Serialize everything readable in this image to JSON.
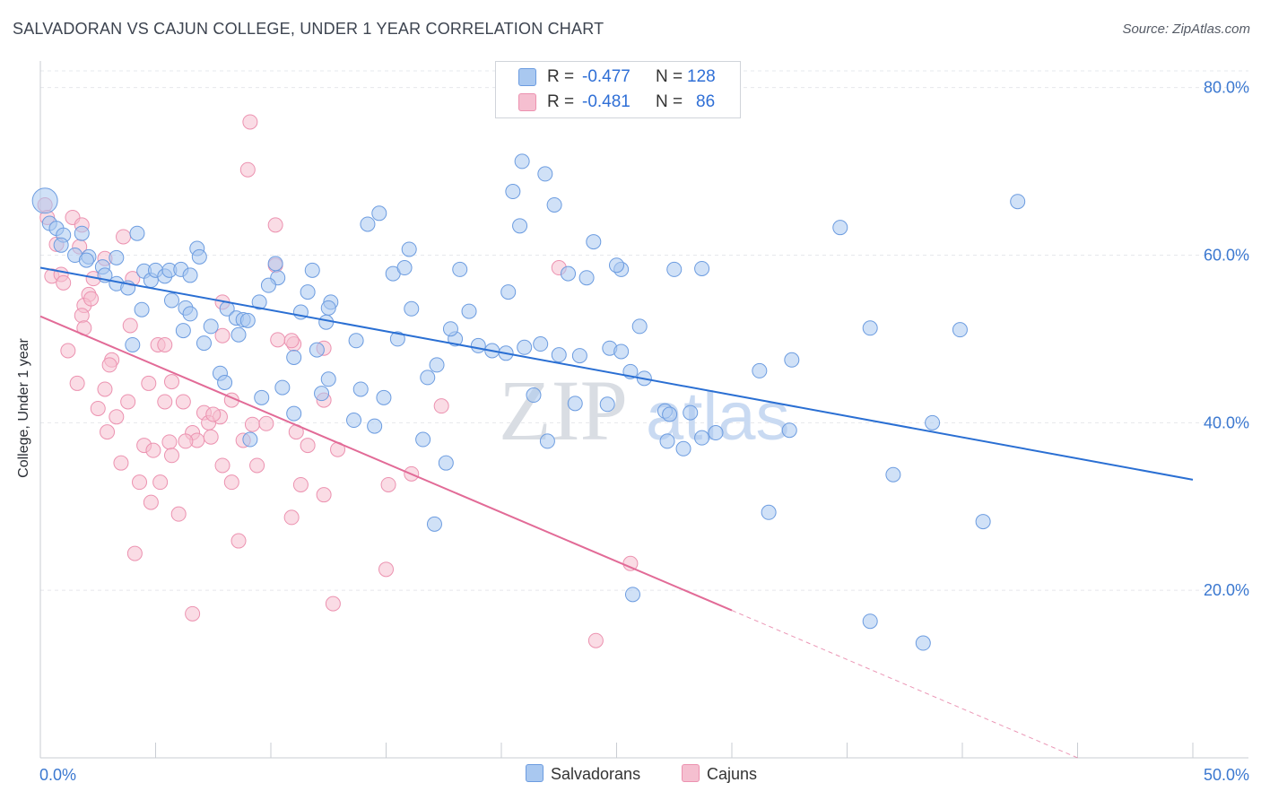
{
  "title": "SALVADORAN VS CAJUN COLLEGE, UNDER 1 YEAR CORRELATION CHART",
  "source": "Source: ZipAtlas.com",
  "watermark": {
    "zip": "ZIP",
    "atlas": "atlas"
  },
  "legend": {
    "rows": [
      {
        "r_label": "R =",
        "r_value": "-0.477",
        "n_label": "N =",
        "n_value": "128"
      },
      {
        "r_label": "R =",
        "r_value": "-0.481",
        "n_label": "N =",
        "n_value": "86"
      }
    ],
    "bottom": [
      "Salvadorans",
      "Cajuns"
    ]
  },
  "colors": {
    "salvadoran_fill": "#a9c8f0",
    "salvadoran_stroke": "#6c9ce0",
    "salvadoran_line": "#2a6fd3",
    "cajun_fill": "#f5bfd0",
    "cajun_stroke": "#ec92b0",
    "cajun_line": "#e26b97",
    "tick": "#3b78d0",
    "grid": "#e6e8ec"
  },
  "chart_data": {
    "type": "scatter",
    "title": "SALVADORAN VS CAJUN COLLEGE, UNDER 1 YEAR CORRELATION CHART",
    "xlabel": "",
    "ylabel": "College, Under 1 year",
    "xlim": [
      0,
      50
    ],
    "ylim": [
      0,
      82
    ],
    "x_tick_labels": [
      "0.0%",
      "50.0%"
    ],
    "y_ticks": [
      20,
      40,
      60,
      80
    ],
    "y_tick_labels": [
      "20.0%",
      "40.0%",
      "60.0%",
      "80.0%"
    ],
    "grid": true,
    "legend_position": "top-center",
    "series": [
      {
        "name": "Salvadorans",
        "r": -0.477,
        "n": 128,
        "trend": {
          "x": [
            0,
            50
          ],
          "y": [
            58.5,
            33.2
          ]
        },
        "points": [
          [
            0.2,
            66.5
          ],
          [
            0.4,
            63.8
          ],
          [
            0.7,
            63.2
          ],
          [
            1,
            62.4
          ],
          [
            1.8,
            62.6
          ],
          [
            4.2,
            62.6
          ],
          [
            1.5,
            60
          ],
          [
            0.9,
            61.2
          ],
          [
            2.1,
            59.8
          ],
          [
            2.7,
            58.6
          ],
          [
            3.3,
            59.7
          ],
          [
            2.8,
            57.6
          ],
          [
            3.3,
            56.6
          ],
          [
            3.8,
            56.1
          ],
          [
            4.5,
            58.1
          ],
          [
            4.8,
            57
          ],
          [
            5,
            58.2
          ],
          [
            5.4,
            57.5
          ],
          [
            5.6,
            58.2
          ],
          [
            6.1,
            58.3
          ],
          [
            6.8,
            60.8
          ],
          [
            6.9,
            59.8
          ],
          [
            4.4,
            53.5
          ],
          [
            5.7,
            54.6
          ],
          [
            6.3,
            53.7
          ],
          [
            6.5,
            53
          ],
          [
            8.1,
            53.6
          ],
          [
            8.5,
            52.5
          ],
          [
            8.8,
            52.3
          ],
          [
            9.5,
            54.4
          ],
          [
            10.2,
            59
          ],
          [
            10.3,
            57.3
          ],
          [
            9.9,
            56.4
          ],
          [
            11.8,
            58.2
          ],
          [
            12.6,
            54.4
          ],
          [
            11.6,
            55.6
          ],
          [
            11.3,
            53.2
          ],
          [
            12.4,
            52
          ],
          [
            13.7,
            49.8
          ],
          [
            12,
            48.7
          ],
          [
            11,
            47.8
          ],
          [
            7.1,
            49.5
          ],
          [
            7.4,
            51.5
          ],
          [
            6.2,
            51
          ],
          [
            8.6,
            50.5
          ],
          [
            4,
            49.3
          ],
          [
            7.8,
            45.9
          ],
          [
            8,
            44.8
          ],
          [
            9.6,
            43
          ],
          [
            9.1,
            38
          ],
          [
            11,
            41.1
          ],
          [
            10.5,
            44.2
          ],
          [
            12.5,
            45.2
          ],
          [
            12.2,
            43.5
          ],
          [
            13.9,
            44
          ],
          [
            14.9,
            43
          ],
          [
            13.6,
            40.3
          ],
          [
            14.5,
            39.6
          ],
          [
            14.2,
            63.7
          ],
          [
            14.7,
            65
          ],
          [
            15.3,
            57.8
          ],
          [
            15.8,
            58.5
          ],
          [
            15.5,
            50
          ],
          [
            16,
            60.7
          ],
          [
            16.1,
            53.6
          ],
          [
            16.8,
            45.4
          ],
          [
            17.2,
            46.9
          ],
          [
            16.6,
            38
          ],
          [
            17.1,
            27.9
          ],
          [
            17.6,
            35.2
          ],
          [
            18.2,
            58.3
          ],
          [
            18.6,
            53.3
          ],
          [
            19,
            49.2
          ],
          [
            18,
            50
          ],
          [
            17.8,
            51.2
          ],
          [
            19.6,
            48.6
          ],
          [
            20.2,
            48.3
          ],
          [
            20.3,
            55.6
          ],
          [
            21,
            49
          ],
          [
            20.8,
            63.5
          ],
          [
            20.5,
            67.6
          ],
          [
            20.9,
            71.2
          ],
          [
            21.9,
            69.7
          ],
          [
            21.4,
            43.3
          ],
          [
            21.7,
            49.4
          ],
          [
            22,
            37.8
          ],
          [
            22.3,
            66
          ],
          [
            22.5,
            48.1
          ],
          [
            23.2,
            42.3
          ],
          [
            22.9,
            57.8
          ],
          [
            23.7,
            57.3
          ],
          [
            24,
            61.6
          ],
          [
            23.4,
            48
          ],
          [
            24.7,
            48.9
          ],
          [
            25.2,
            58.3
          ],
          [
            25,
            58.8
          ],
          [
            25.2,
            48.5
          ],
          [
            25.6,
            46.1
          ],
          [
            26.2,
            45.3
          ],
          [
            26,
            51.5
          ],
          [
            27.1,
            41.4
          ],
          [
            27.3,
            41
          ],
          [
            28.2,
            41.2
          ],
          [
            27.9,
            36.9
          ],
          [
            27.2,
            37.8
          ],
          [
            28.7,
            38.2
          ],
          [
            28.7,
            58.4
          ],
          [
            29.3,
            38.8
          ],
          [
            31.2,
            46.2
          ],
          [
            32.5,
            39.1
          ],
          [
            31.6,
            29.3
          ],
          [
            32.6,
            47.5
          ],
          [
            34.7,
            63.3
          ],
          [
            25.7,
            19.5
          ],
          [
            36,
            16.3
          ],
          [
            37,
            33.8
          ],
          [
            38.7,
            40
          ],
          [
            38.3,
            13.7
          ],
          [
            39.9,
            51.1
          ],
          [
            40.9,
            28.2
          ],
          [
            42.4,
            66.4
          ],
          [
            36,
            51.3
          ],
          [
            27.5,
            58.3
          ],
          [
            24.6,
            42.2
          ],
          [
            12.5,
            53.7
          ],
          [
            9,
            52.2
          ],
          [
            6.5,
            57.6
          ],
          [
            2,
            59.4
          ]
        ]
      },
      {
        "name": "Cajuns",
        "r": -0.481,
        "n": 86,
        "trend": {
          "x": [
            0,
            30
          ],
          "y": [
            52.7,
            17.6
          ]
        },
        "trend_dashed": {
          "x": [
            30,
            45
          ],
          "y": [
            17.6,
            0
          ]
        },
        "points": [
          [
            0.2,
            66
          ],
          [
            0.3,
            64.5
          ],
          [
            0.7,
            61.3
          ],
          [
            1.4,
            64.5
          ],
          [
            1.8,
            63.6
          ],
          [
            0.5,
            57.5
          ],
          [
            0.9,
            57.7
          ],
          [
            1,
            56.7
          ],
          [
            2.3,
            57.2
          ],
          [
            1.7,
            61
          ],
          [
            2.1,
            55.3
          ],
          [
            1.9,
            54
          ],
          [
            1.8,
            52.8
          ],
          [
            1.9,
            51.3
          ],
          [
            2.8,
            59.6
          ],
          [
            3.6,
            62.2
          ],
          [
            4,
            57.2
          ],
          [
            3.9,
            51.6
          ],
          [
            5.1,
            49.3
          ],
          [
            5.4,
            49.3
          ],
          [
            7.9,
            54.4
          ],
          [
            7.9,
            50.4
          ],
          [
            10.2,
            58.8
          ],
          [
            10.2,
            63.6
          ],
          [
            10.3,
            49.9
          ],
          [
            11,
            49.4
          ],
          [
            12.3,
            48.9
          ],
          [
            9,
            70.2
          ],
          [
            9.1,
            75.9
          ],
          [
            1.2,
            48.6
          ],
          [
            3.1,
            47.5
          ],
          [
            3,
            46.9
          ],
          [
            1.6,
            44.7
          ],
          [
            2.8,
            44
          ],
          [
            4.7,
            44.7
          ],
          [
            5.7,
            44.9
          ],
          [
            5.4,
            42.5
          ],
          [
            3.8,
            42.5
          ],
          [
            2.5,
            41.7
          ],
          [
            3.3,
            40.7
          ],
          [
            7.1,
            41.2
          ],
          [
            7.3,
            40
          ],
          [
            6.6,
            38.8
          ],
          [
            7.8,
            40.7
          ],
          [
            6.8,
            37.9
          ],
          [
            7.4,
            38.3
          ],
          [
            8.3,
            42.7
          ],
          [
            9.2,
            39.8
          ],
          [
            8.8,
            37.9
          ],
          [
            11.1,
            38.9
          ],
          [
            11.6,
            37.3
          ],
          [
            12.9,
            36.8
          ],
          [
            4.5,
            37.3
          ],
          [
            5.6,
            37.7
          ],
          [
            5.7,
            36.1
          ],
          [
            4.9,
            36.7
          ],
          [
            6.3,
            37.8
          ],
          [
            3.5,
            35.2
          ],
          [
            2.9,
            38.9
          ],
          [
            7.9,
            34.9
          ],
          [
            8.3,
            32.9
          ],
          [
            9.4,
            34.9
          ],
          [
            11.3,
            32.6
          ],
          [
            4.3,
            32.9
          ],
          [
            5.2,
            32.9
          ],
          [
            4.8,
            30.5
          ],
          [
            6,
            29.1
          ],
          [
            10.9,
            28.7
          ],
          [
            12.3,
            31.4
          ],
          [
            15.1,
            32.6
          ],
          [
            16.1,
            33.9
          ],
          [
            17.4,
            42
          ],
          [
            12.3,
            42.7
          ],
          [
            8.6,
            25.9
          ],
          [
            4.1,
            24.4
          ],
          [
            15,
            22.5
          ],
          [
            25.6,
            23.2
          ],
          [
            12.7,
            18.4
          ],
          [
            6.6,
            17.2
          ],
          [
            24.1,
            14
          ],
          [
            22.5,
            58.5
          ],
          [
            9.8,
            39.9
          ],
          [
            6.2,
            42.5
          ],
          [
            7.5,
            41
          ],
          [
            10.9,
            49.8
          ],
          [
            2.2,
            54.8
          ]
        ]
      }
    ]
  }
}
